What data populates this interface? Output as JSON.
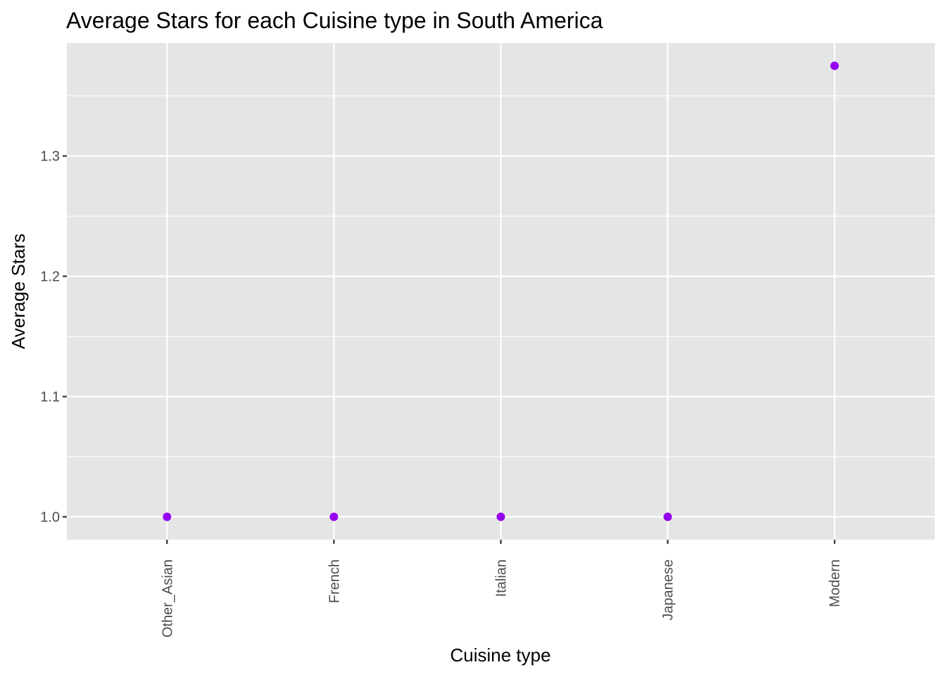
{
  "chart_data": {
    "type": "scatter",
    "title": "Average Stars for each Cuisine type in South America",
    "xlabel": "Cuisine type",
    "ylabel": "Average Stars",
    "categories": [
      "Other_Asian",
      "French",
      "Italian",
      "Japanese",
      "Modern"
    ],
    "values": [
      1.0,
      1.0,
      1.0,
      1.0,
      1.375
    ],
    "ylim": [
      0.981,
      1.394
    ],
    "yticks": [
      1.0,
      1.1,
      1.2,
      1.3
    ],
    "ytick_labels": [
      "1.0",
      "1.1",
      "1.2",
      "1.3"
    ],
    "grid": true,
    "legend": "none",
    "x_tick_rotation": "vertical",
    "colors": {
      "point": "#9400f0",
      "panel_background": "#e5e5e5",
      "grid": "#ffffff",
      "tick_text": "#4d4d4d",
      "tick_mark": "#333333"
    }
  }
}
